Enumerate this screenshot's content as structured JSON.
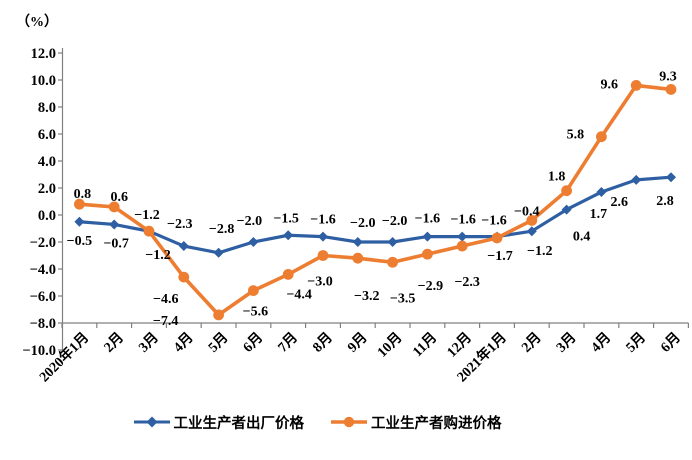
{
  "chart_data": {
    "type": "line",
    "title": "",
    "unit_label": "（%）",
    "xlabel": "",
    "ylabel": "",
    "ylim": [
      -10,
      12
    ],
    "y_tick_step": 2,
    "y_ticks": [
      12,
      10,
      8,
      6,
      4,
      2,
      0,
      -2,
      -4,
      -6,
      -8,
      -10
    ],
    "x_axis_cross": -8,
    "grid": false,
    "legend_position": "bottom",
    "categories": [
      "2020年1月",
      "2月",
      "3月",
      "4月",
      "5月",
      "6月",
      "7月",
      "8月",
      "9月",
      "10月",
      "11月",
      "12月",
      "2021年1月",
      "2月",
      "3月",
      "4月",
      "5月",
      "6月"
    ],
    "series": [
      {
        "name": "工业生产者出厂价格",
        "color": "#2E5FA3",
        "marker": "diamond",
        "values": [
          -0.5,
          -0.7,
          -1.2,
          -2.3,
          -2.8,
          -2.0,
          -1.5,
          -1.6,
          -2.0,
          -2.0,
          -1.6,
          -1.6,
          -1.6,
          -1.2,
          0.4,
          1.7,
          2.6,
          2.8
        ],
        "label_offsets": [
          [
            0,
            23
          ],
          [
            2,
            23
          ],
          [
            -2,
            -12
          ],
          [
            -4,
            -18
          ],
          [
            3,
            -20
          ],
          [
            -4,
            -17
          ],
          [
            -2,
            -13
          ],
          [
            0,
            -13
          ],
          [
            5,
            -15
          ],
          [
            2,
            -17
          ],
          [
            0,
            -14
          ],
          [
            1,
            -13
          ],
          [
            -3,
            -12
          ],
          [
            8,
            24
          ],
          [
            15,
            31
          ],
          [
            -3,
            26
          ],
          [
            -17,
            26
          ],
          [
            -6,
            28
          ]
        ]
      },
      {
        "name": "工业生产者购进价格",
        "color": "#ED7D31",
        "marker": "circle",
        "values": [
          0.8,
          0.6,
          -1.2,
          -4.6,
          -7.4,
          -5.6,
          -4.4,
          -3.0,
          -3.2,
          -3.5,
          -2.9,
          -2.3,
          -1.7,
          -0.4,
          1.8,
          5.8,
          9.6,
          9.3
        ],
        "label_offsets": [
          [
            3,
            -6
          ],
          [
            5,
            -6
          ],
          [
            9,
            28
          ],
          [
            -18,
            26
          ],
          [
            -53,
            10
          ],
          [
            2,
            25
          ],
          [
            11,
            24
          ],
          [
            -3,
            30
          ],
          [
            9,
            42
          ],
          [
            10,
            40
          ],
          [
            3,
            36
          ],
          [
            5,
            40
          ],
          [
            3,
            22
          ],
          [
            -5,
            -5
          ],
          [
            -10,
            -10
          ],
          [
            -26,
            2
          ],
          [
            -27,
            3
          ],
          [
            -3,
            -9
          ]
        ]
      }
    ]
  }
}
